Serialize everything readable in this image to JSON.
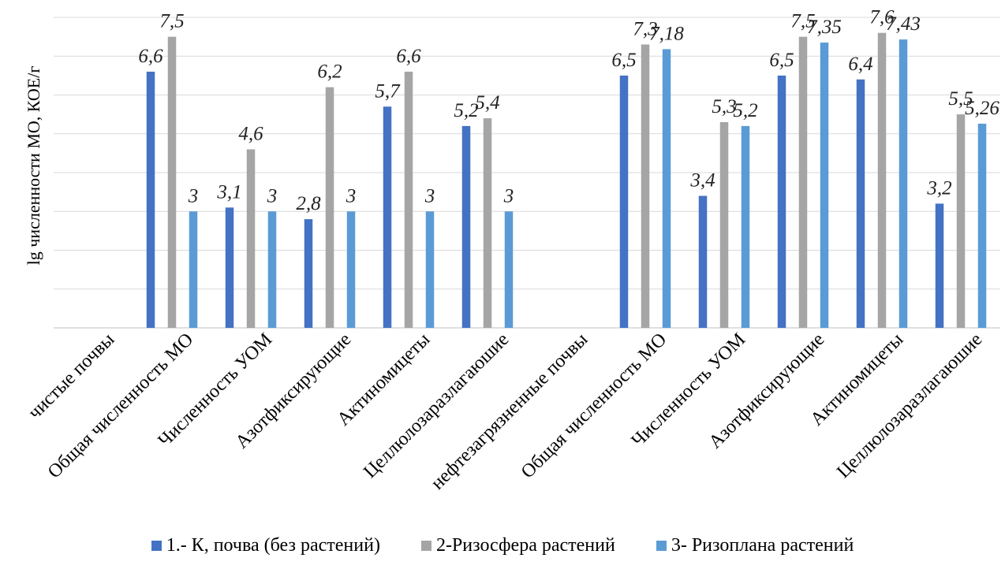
{
  "chart_data": {
    "type": "bar",
    "ylabel": "lg численности МО, КОЕ/г",
    "ylim": [
      0,
      8
    ],
    "gridlines": [
      1,
      2,
      3,
      4,
      5,
      6,
      7,
      8
    ],
    "show_y_tick_labels": false,
    "grid": true,
    "legend_position": "bottom",
    "categories": [
      "чистые почвы",
      "Общая численность МО",
      "Численность УОМ",
      "Азотфиксирующие",
      "Актиномицеты",
      "Целлюлозаразлагаюшие",
      "нефтезагрязненные почвы",
      "Общая численность МО",
      "Численность УОМ",
      "Азотфиксирующие",
      "Актиномицеты",
      "Целлюлозаразлагаюшие"
    ],
    "series": [
      {
        "name": "1.- К, почва (без растений)",
        "color": "#4472c4",
        "values": [
          null,
          6.6,
          3.1,
          2.8,
          5.7,
          5.2,
          null,
          6.5,
          3.4,
          6.5,
          6.4,
          3.2
        ],
        "labels": [
          "",
          "6,6",
          "3,1",
          "2,8",
          "5,7",
          "5,2",
          "",
          "6,5",
          "3,4",
          "6,5",
          "6,4",
          "3,2"
        ]
      },
      {
        "name": "2-Ризосфера растений",
        "color": "#a5a5a5",
        "values": [
          null,
          7.5,
          4.6,
          6.2,
          6.6,
          5.4,
          null,
          7.3,
          5.3,
          7.5,
          7.6,
          5.5
        ],
        "labels": [
          "",
          "7,5",
          "4,6",
          "6,2",
          "6,6",
          "5,4",
          "",
          "7,3",
          "5,3",
          "7,5",
          "7,6",
          "5,5"
        ]
      },
      {
        "name": "3- Ризоплана растений",
        "color": "#5b9bd5",
        "values": [
          null,
          3,
          3,
          3,
          3,
          3,
          null,
          7.18,
          5.2,
          7.35,
          7.43,
          5.26
        ],
        "labels": [
          "",
          "3",
          "3",
          "3",
          "3",
          "3",
          "",
          "7,18",
          "5,2",
          "7,35",
          "7,43",
          "5,26"
        ]
      }
    ]
  }
}
